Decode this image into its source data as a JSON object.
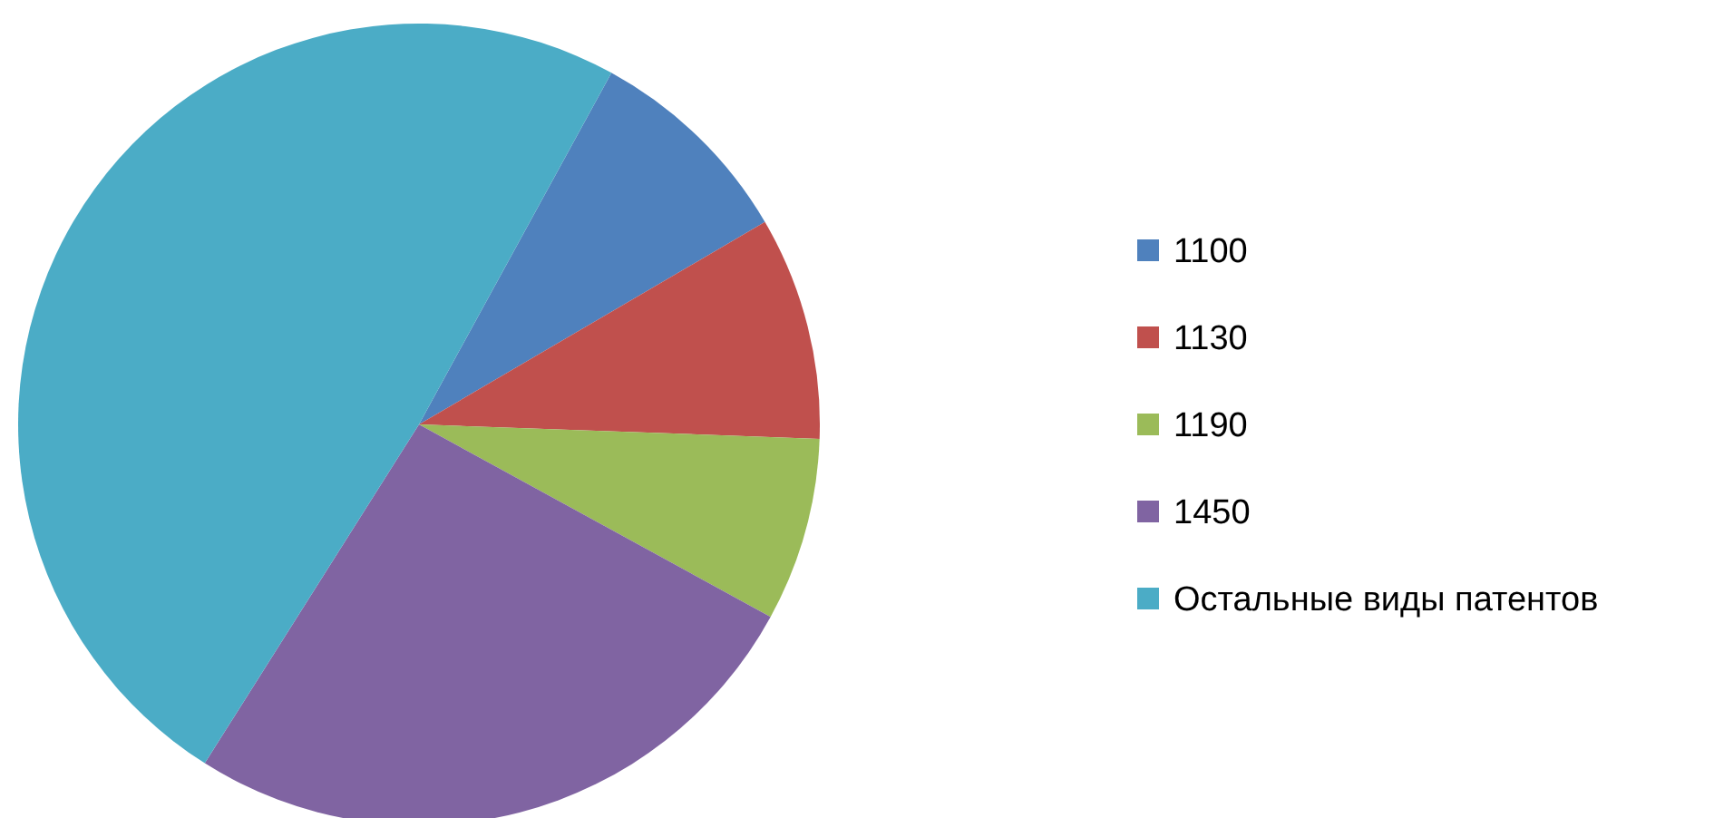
{
  "chart_data": {
    "type": "pie",
    "categories": [
      "1100",
      "1130",
      "1190",
      "1450",
      "Остальные виды патентов"
    ],
    "values": [
      8.6,
      9,
      7.4,
      26,
      49
    ],
    "colors": [
      "#4f81bd",
      "#c0504d",
      "#9bbb59",
      "#8064a2",
      "#4bacc6"
    ],
    "legend": "right"
  }
}
